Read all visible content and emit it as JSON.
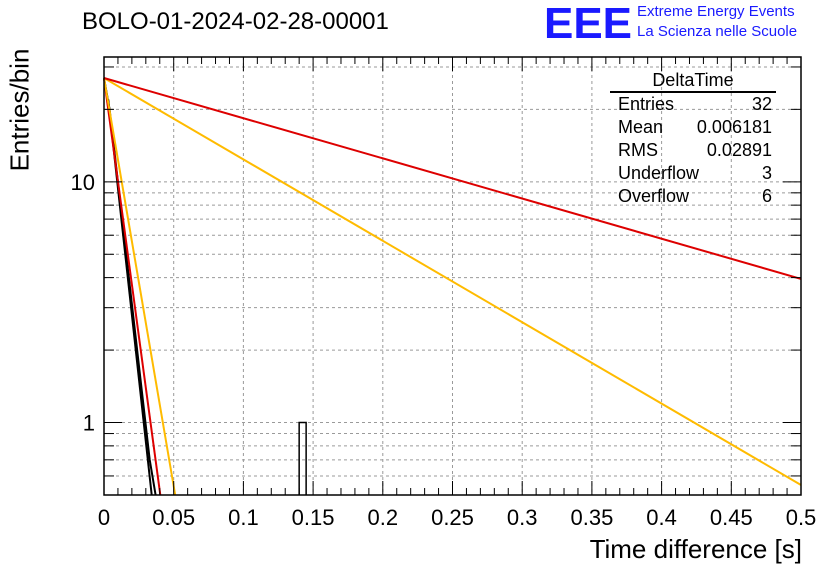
{
  "header": {
    "title": "BOLO-01-2024-02-28-00001",
    "logo_text": "EEE",
    "logo_line1": "Extreme Energy Events",
    "logo_line2": "La Scienza nelle Scuole"
  },
  "stats": {
    "name": "DeltaTime",
    "rows": [
      {
        "label": "Entries",
        "value": "32"
      },
      {
        "label": "Mean",
        "value": "0.006181"
      },
      {
        "label": "RMS",
        "value": "0.02891"
      },
      {
        "label": "Underflow",
        "value": "3"
      },
      {
        "label": "Overflow",
        "value": "6"
      }
    ]
  },
  "chart_data": {
    "type": "line",
    "xlabel": "Time difference [s]",
    "ylabel": "Entries/bin",
    "xlim": [
      0,
      0.5
    ],
    "ylim": [
      0.5,
      33
    ],
    "yscale": "log",
    "grid": true,
    "x_ticks": [
      "0",
      "0.05",
      "0.1",
      "0.15",
      "0.2",
      "0.25",
      "0.3",
      "0.35",
      "0.4",
      "0.45",
      "0.5"
    ],
    "y_ticks": [
      "1",
      "10"
    ],
    "histogram": {
      "bin_width": 0.005,
      "bins": [
        {
          "x_low": 0.14,
          "x_high": 0.145,
          "count": 1
        }
      ]
    },
    "series": [
      {
        "color": "#000000",
        "points": [
          [
            0,
            27
          ],
          [
            0.004,
            20
          ],
          [
            0.0328,
            0.7
          ],
          [
            0.037,
            0.5
          ]
        ]
      },
      {
        "color": "#000000",
        "points": [
          [
            0.003,
            22
          ],
          [
            0.0342,
            0.5
          ]
        ]
      },
      {
        "color": "#dd0000",
        "points": [
          [
            0,
            27
          ],
          [
            0.0404,
            0.5
          ]
        ]
      },
      {
        "color": "#ffbb00",
        "points": [
          [
            0,
            27
          ],
          [
            0.0511,
            0.5
          ]
        ]
      },
      {
        "color": "#ffbb00",
        "points": [
          [
            0,
            27
          ],
          [
            0.5,
            0.55
          ]
        ]
      },
      {
        "color": "#dd0000",
        "points": [
          [
            0,
            27
          ],
          [
            0.5,
            3.95
          ]
        ]
      }
    ]
  }
}
